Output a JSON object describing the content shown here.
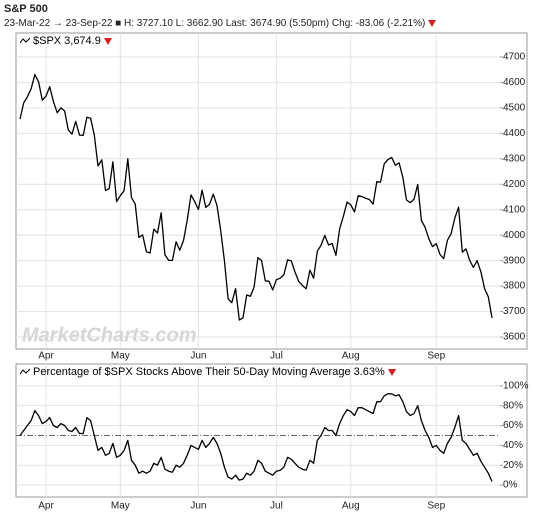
{
  "header": {
    "title": "S&P 500",
    "subtitle": "23-Mar-22 → 23-Sep-22 ■ H: 3727.10 L: 3662.90 Last: 3674.90 (5:50pm) Chg: -83.06 (-2.21%)"
  },
  "chart_data": [
    {
      "type": "line",
      "watermark": "MarketCharts.com",
      "categories": [
        null,
        null,
        null,
        null,
        null,
        null,
        null,
        "Apr",
        null,
        null,
        null,
        null,
        null,
        null,
        null,
        null,
        null,
        null,
        null,
        null,
        null,
        null,
        null,
        null,
        null,
        null,
        null,
        "May",
        null,
        null,
        null,
        null,
        null,
        null,
        null,
        null,
        null,
        null,
        null,
        null,
        null,
        null,
        null,
        null,
        null,
        null,
        null,
        null,
        "Jun",
        null,
        null,
        null,
        null,
        null,
        null,
        null,
        null,
        null,
        null,
        null,
        null,
        null,
        null,
        null,
        null,
        null,
        null,
        null,
        null,
        "Jul",
        null,
        null,
        null,
        null,
        null,
        null,
        null,
        null,
        null,
        null,
        null,
        null,
        null,
        null,
        null,
        null,
        null,
        null,
        null,
        "Aug",
        null,
        null,
        null,
        null,
        null,
        null,
        null,
        null,
        null,
        null,
        null,
        null,
        null,
        null,
        null,
        null,
        null,
        null,
        null,
        null,
        null,
        null,
        "Sep",
        null,
        null,
        null,
        null,
        null,
        null,
        null,
        null,
        null,
        null,
        null,
        null,
        null,
        null,
        null
      ],
      "series": [
        {
          "name": "$SPX",
          "last_label": "3,674.9",
          "color": "#000000",
          "values": [
            4456,
            4520,
            4543,
            4575,
            4631,
            4602,
            4530,
            4546,
            4583,
            4525,
            4481,
            4500,
            4488,
            4413,
            4397,
            4447,
            4393,
            4392,
            4463,
            4459,
            4394,
            4272,
            4296,
            4175,
            4183,
            4288,
            4132,
            4155,
            4175,
            4300,
            4147,
            4123,
            3991,
            4001,
            3935,
            3930,
            4024,
            4008,
            4088,
            3923,
            3901,
            3901,
            3974,
            3941,
            3979,
            4058,
            4158,
            4132,
            4101,
            4177,
            4109,
            4121,
            4161,
            4116,
            4018,
            3901,
            3750,
            3735,
            3790,
            3667,
            3675,
            3765,
            3760,
            3796,
            3912,
            3900,
            3821,
            3819,
            3785,
            3825,
            3831,
            3845,
            3903,
            3899,
            3855,
            3819,
            3802,
            3790,
            3863,
            3831,
            3937,
            3960,
            3999,
            3962,
            3967,
            3921,
            4024,
            4073,
            4130,
            4119,
            4091,
            4155,
            4152,
            4145,
            4140,
            4122,
            4210,
            4208,
            4280,
            4297,
            4305,
            4275,
            4284,
            4228,
            4138,
            4128,
            4141,
            4199,
            4058,
            4031,
            3986,
            3955,
            3967,
            3924,
            3908,
            3980,
            4006,
            4067,
            4110,
            3933,
            3946,
            3901,
            3873,
            3900,
            3856,
            3790,
            3758,
            3675
          ]
        }
      ],
      "ylim": [
        3553,
        4794
      ],
      "yticks": [
        3600,
        3700,
        3800,
        3900,
        4000,
        4100,
        4200,
        4300,
        4400,
        4500,
        4600,
        4700
      ],
      "grid": true
    },
    {
      "type": "line",
      "categories": [
        null,
        null,
        null,
        null,
        null,
        null,
        null,
        "Apr",
        null,
        null,
        null,
        null,
        null,
        null,
        null,
        null,
        null,
        null,
        null,
        null,
        null,
        null,
        null,
        null,
        null,
        null,
        null,
        "May",
        null,
        null,
        null,
        null,
        null,
        null,
        null,
        null,
        null,
        null,
        null,
        null,
        null,
        null,
        null,
        null,
        null,
        null,
        null,
        null,
        "Jun",
        null,
        null,
        null,
        null,
        null,
        null,
        null,
        null,
        null,
        null,
        null,
        null,
        null,
        null,
        null,
        null,
        null,
        null,
        null,
        null,
        "Jul",
        null,
        null,
        null,
        null,
        null,
        null,
        null,
        null,
        null,
        null,
        null,
        null,
        null,
        null,
        null,
        null,
        null,
        null,
        null,
        "Aug",
        null,
        null,
        null,
        null,
        null,
        null,
        null,
        null,
        null,
        null,
        null,
        null,
        null,
        null,
        null,
        null,
        null,
        null,
        null,
        null,
        null,
        null,
        "Sep",
        null,
        null,
        null,
        null,
        null,
        null,
        null,
        null,
        null,
        null,
        null,
        null,
        null,
        null,
        null
      ],
      "series": [
        {
          "name": "Percentage of $SPX Stocks Above Their 50-Day Moving Average",
          "last_label": "3.63%",
          "color": "#000000",
          "values": [
            50,
            55,
            60,
            65,
            75,
            70,
            62,
            64,
            68,
            60,
            58,
            62,
            60,
            55,
            54,
            58,
            52,
            52,
            68,
            65,
            50,
            35,
            38,
            30,
            32,
            42,
            28,
            30,
            35,
            45,
            25,
            20,
            12,
            14,
            12,
            14,
            22,
            20,
            28,
            16,
            14,
            13,
            20,
            18,
            22,
            30,
            40,
            38,
            36,
            45,
            38,
            42,
            48,
            42,
            32,
            18,
            8,
            6,
            10,
            5,
            6,
            12,
            10,
            14,
            25,
            22,
            14,
            12,
            10,
            14,
            15,
            18,
            28,
            26,
            22,
            18,
            16,
            15,
            25,
            22,
            45,
            50,
            58,
            55,
            55,
            50,
            62,
            70,
            76,
            74,
            70,
            78,
            78,
            76,
            74,
            72,
            84,
            84,
            90,
            92,
            92,
            90,
            91,
            84,
            74,
            70,
            72,
            80,
            65,
            55,
            48,
            38,
            40,
            35,
            32,
            42,
            48,
            58,
            70,
            45,
            42,
            36,
            30,
            32,
            24,
            18,
            12,
            3.63
          ]
        }
      ],
      "ref_line": 50,
      "ylim": [
        -12,
        122
      ],
      "yticks": [
        {
          "value": 0,
          "label": "0%"
        },
        {
          "value": 20,
          "label": "20%"
        },
        {
          "value": 40,
          "label": "40%"
        },
        {
          "value": 60,
          "label": "60%"
        },
        {
          "value": 80,
          "label": "80%"
        },
        {
          "value": 100,
          "label": "100%"
        }
      ],
      "grid": true
    }
  ]
}
